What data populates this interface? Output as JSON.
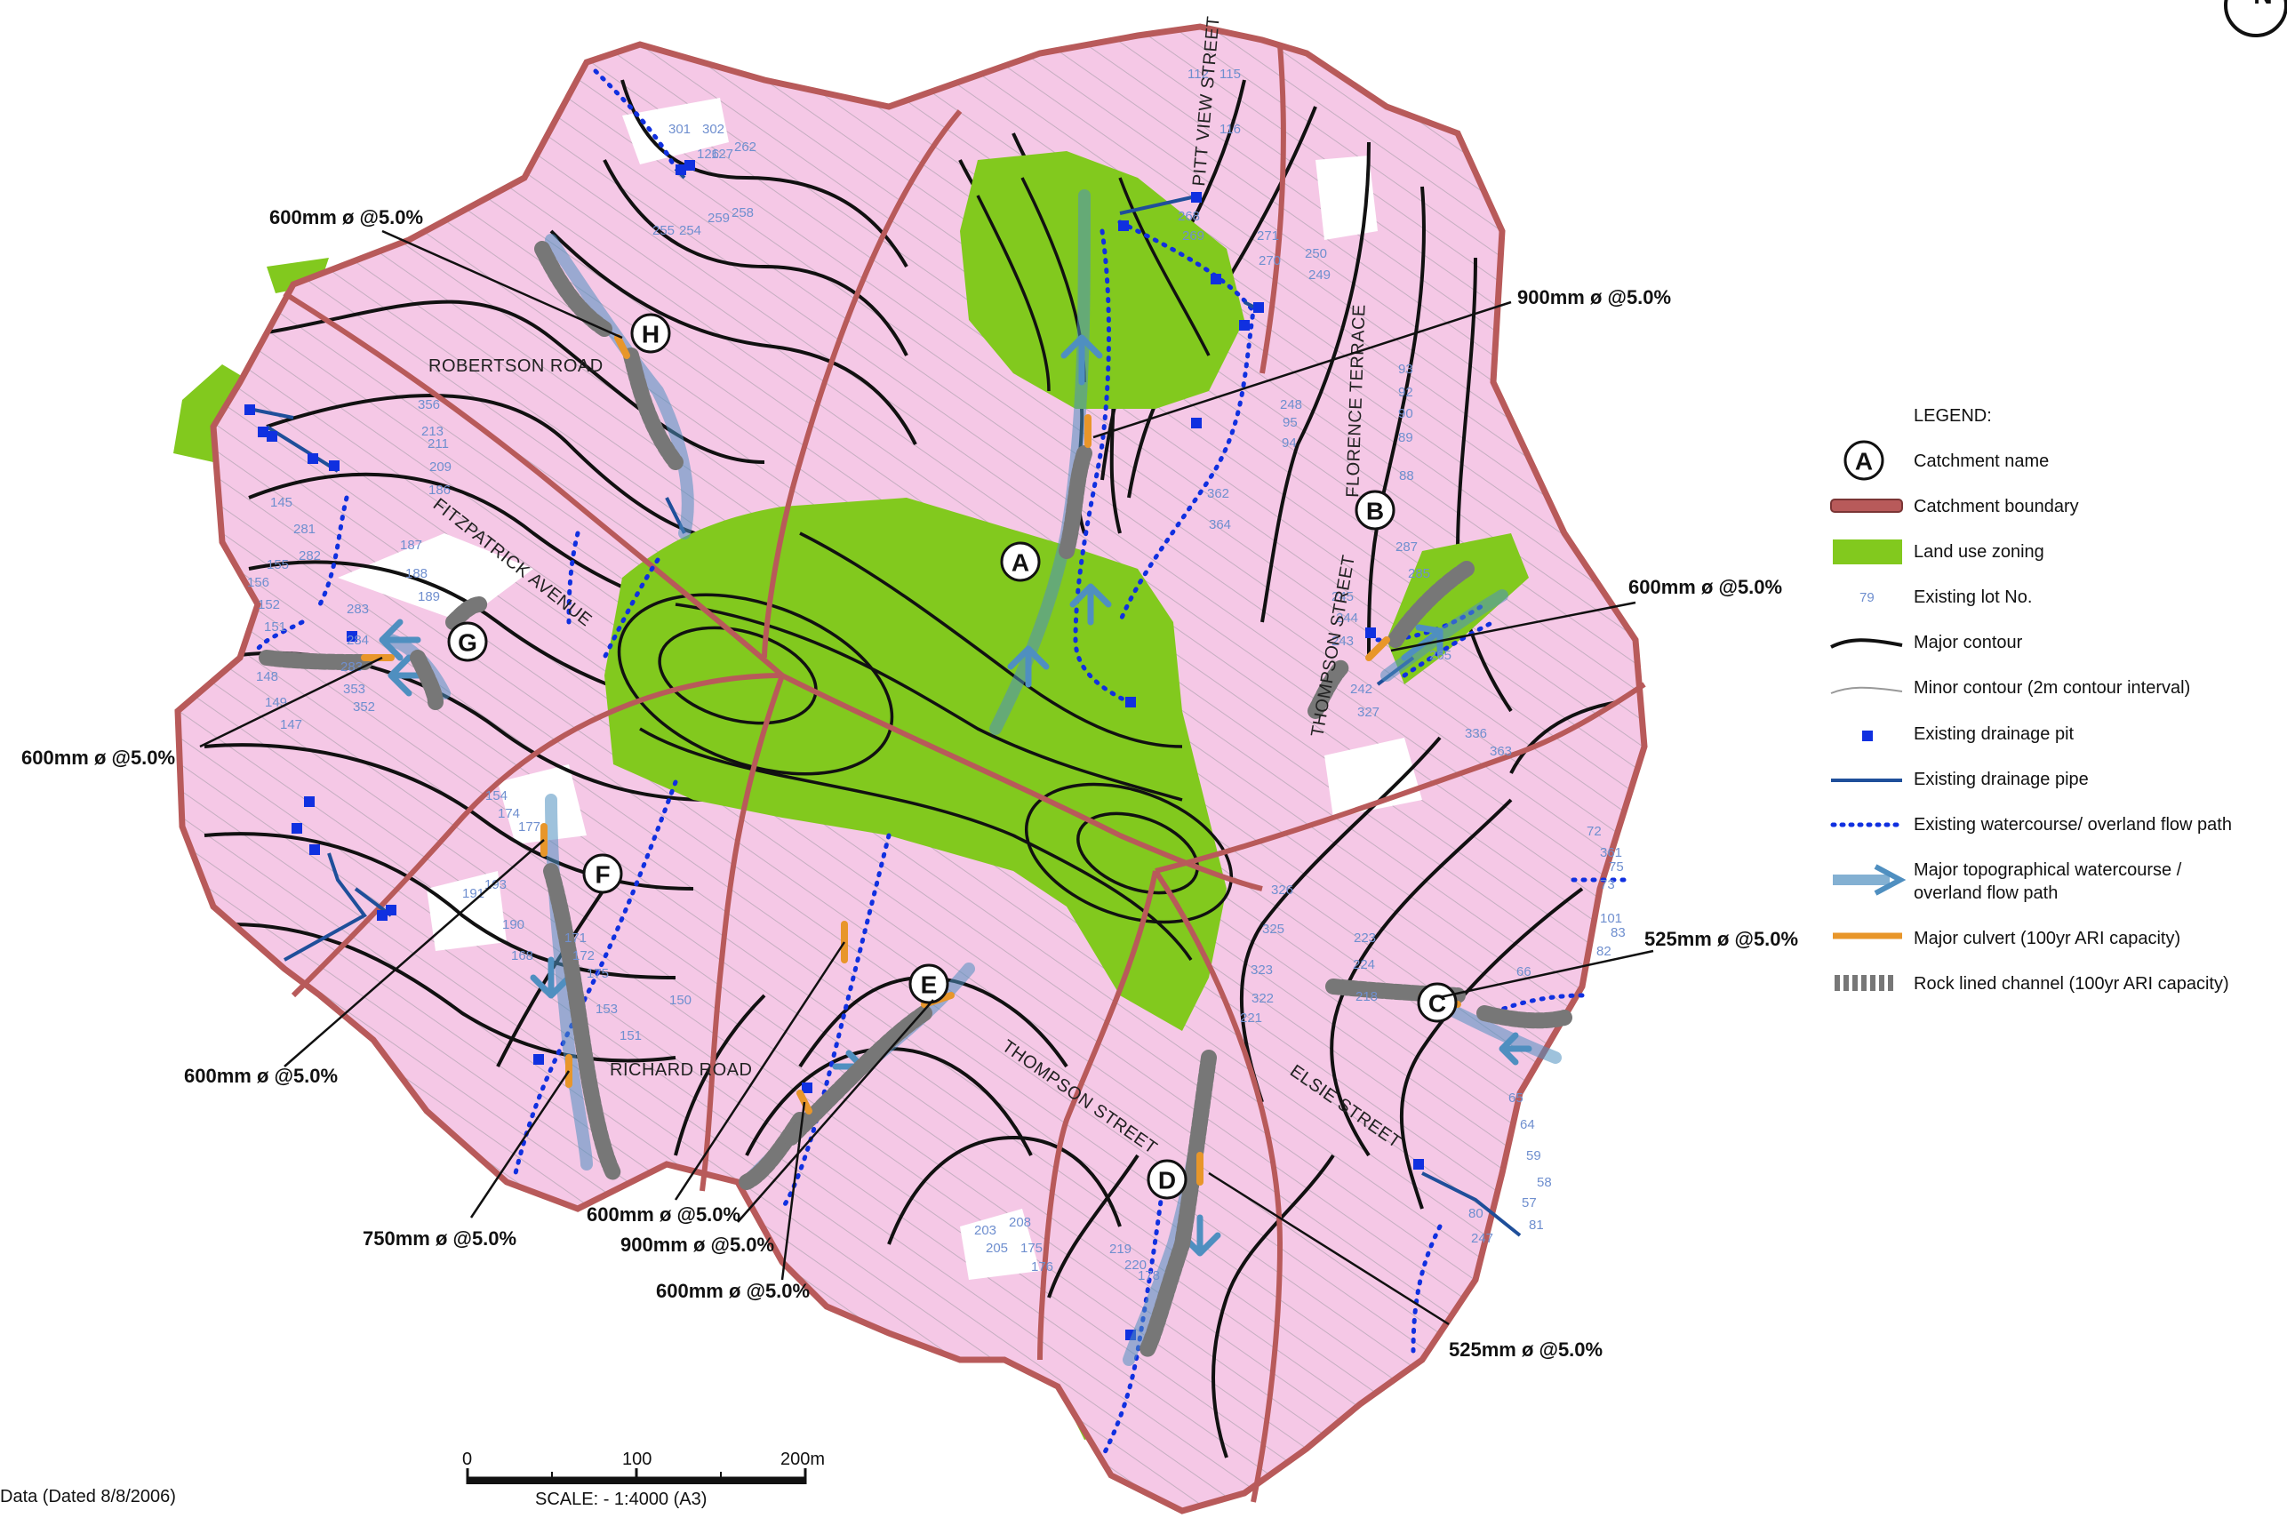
{
  "streets": {
    "pitt_view": "PITT VIEW STREET",
    "florence": "FLORENCE TERRACE",
    "robertson": "ROBERTSON ROAD",
    "fitzpatrick": "FITZPATRICK AVENUE",
    "thompson_upper": "THOMPSON STREET",
    "thompson_lower": "THOMPSON STREET",
    "richard": "RICHARD ROAD",
    "elsie": "ELSIE STREET"
  },
  "catchments": [
    "A",
    "B",
    "C",
    "D",
    "E",
    "F",
    "G",
    "H"
  ],
  "callouts": {
    "h_pipe": "600mm ø @5.0%",
    "a_pipe": "900mm ø @5.0%",
    "b_pipe": "600mm ø @5.0%",
    "g_pipe": "600mm ø @5.0%",
    "f_pipe": "600mm ø @5.0%",
    "c_pipe": "525mm ø @5.0%",
    "f_low": "750mm ø @5.0%",
    "e_600": "600mm ø @5.0%",
    "e_900": "900mm ø @5.0%",
    "e_600b": "600mm ø @5.0%",
    "d_pipe": "525mm ø @5.0%"
  },
  "lot_numbers": [
    "112",
    "115",
    "116",
    "302",
    "301",
    "127",
    "126",
    "262",
    "271",
    "270",
    "269",
    "268",
    "255",
    "254",
    "259",
    "258",
    "250",
    "249",
    "248",
    "95",
    "94",
    "93",
    "92",
    "90",
    "89",
    "88",
    "287",
    "285",
    "265",
    "336",
    "363",
    "364",
    "362",
    "361",
    "75",
    "73",
    "72",
    "101",
    "83",
    "82",
    "66",
    "65",
    "64",
    "59",
    "58",
    "57",
    "81",
    "80",
    "247",
    "245",
    "244",
    "243",
    "242",
    "327",
    "326",
    "325",
    "323",
    "322",
    "221",
    "223",
    "224",
    "218",
    "219",
    "220",
    "178",
    "203",
    "205",
    "208",
    "175",
    "176",
    "177",
    "174",
    "154",
    "155",
    "156",
    "152",
    "151",
    "148",
    "149",
    "147",
    "145",
    "281",
    "282",
    "283",
    "284",
    "283",
    "353",
    "352",
    "356",
    "213",
    "211",
    "209",
    "186",
    "187",
    "188",
    "189",
    "191",
    "193",
    "190",
    "168",
    "171",
    "172",
    "175",
    "153",
    "151",
    "150"
  ],
  "legend": {
    "title": "LEGEND:",
    "items": [
      {
        "symbol": "A",
        "label": "Catchment name"
      },
      {
        "label": "Catchment boundary"
      },
      {
        "label": "Land use zoning"
      },
      {
        "sample": "79",
        "label": "Existing lot No."
      },
      {
        "label": "Major contour"
      },
      {
        "label": "Minor contour (2m contour interval)"
      },
      {
        "label": "Existing drainage pit"
      },
      {
        "label": "Existing drainage pipe"
      },
      {
        "label": "Existing watercourse/ overland flow path"
      },
      {
        "label": "Major topographical watercourse /",
        "label2": "overland flow path"
      },
      {
        "label": "Major culvert (100yr ARI capacity)"
      },
      {
        "label": "Rock lined channel (100yr ARI capacity)"
      }
    ]
  },
  "scale": {
    "ticks": [
      "0",
      "100",
      "200m"
    ],
    "label": "SCALE: -  1:4000 (A3)"
  },
  "footer_note": "Data (Dated 8/8/2006)",
  "north_label": "N",
  "colors": {
    "residential": "#f5c8e6",
    "open_space": "#82c91e",
    "boundary": "#b85a5a",
    "pipe": "#1f4f9a",
    "pit": "#1030e0",
    "culvert": "#e8962a",
    "flow_arrow": "#4f8fc0"
  }
}
